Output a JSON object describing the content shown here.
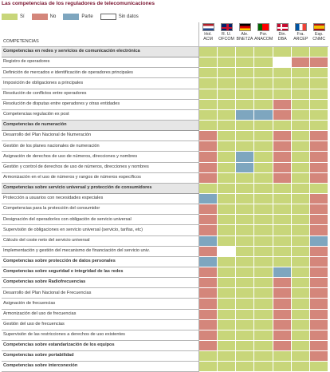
{
  "title": "Las competencias de los reguladores de telecomunicaciones",
  "legend": [
    {
      "label": "Sí",
      "key": "si",
      "color": "#c8d67a"
    },
    {
      "label": "No",
      "key": "no",
      "color": "#d4867b"
    },
    {
      "label": "Parte",
      "key": "pa",
      "color": "#7ea6bf"
    },
    {
      "label": "Sin datos",
      "key": "sd",
      "color": "#ffffff"
    }
  ],
  "header_label": "COMPETENCIAS",
  "countries": [
    {
      "country": "Hol.",
      "regulator": "ACM",
      "flag": "nl-flag-icon"
    },
    {
      "country": "R. U.",
      "regulator": "OFCOM",
      "flag": "uk-flag-icon"
    },
    {
      "country": "Ale.",
      "regulator": "BNETZA",
      "flag": "de-flag-icon"
    },
    {
      "country": "Por.",
      "regulator": "ANACOM",
      "flag": "pt-flag-icon"
    },
    {
      "country": "Din.",
      "regulator": "DBA",
      "flag": "dk-flag-icon"
    },
    {
      "country": "Fra.",
      "regulator": "ARCEP",
      "flag": "fr-flag-icon"
    },
    {
      "country": "Esp.",
      "regulator": "CNMC",
      "flag": "es-flag-icon"
    }
  ],
  "rows": [
    {
      "label": "Competencias en redes y servicios de comunicación electrónica",
      "type": "section",
      "cells": [
        "si",
        "si",
        "si",
        "si",
        "si",
        "si",
        "si"
      ]
    },
    {
      "label": "Registro de operadores",
      "cells": [
        "si",
        "si",
        "si",
        "si",
        "sd",
        "no",
        "no"
      ]
    },
    {
      "label": "Definición de mercados e identificación de operadores principales",
      "cells": [
        "si",
        "si",
        "si",
        "si",
        "si",
        "si",
        "si"
      ]
    },
    {
      "label": "Imposición de obligaciones a principales",
      "cells": [
        "si",
        "si",
        "si",
        "si",
        "si",
        "si",
        "si"
      ]
    },
    {
      "label": "Resolución de conflictos entre operadores",
      "cells": [
        "si",
        "si",
        "si",
        "si",
        "si",
        "si",
        "si"
      ]
    },
    {
      "label": "Resolución de disputas entre operadores y otras entidades",
      "cells": [
        "si",
        "si",
        "si",
        "si",
        "no",
        "si",
        "si"
      ]
    },
    {
      "label": "Competencias regulación ex post",
      "cells": [
        "si",
        "si",
        "pa",
        "pa",
        "no",
        "si",
        "si"
      ]
    },
    {
      "label": "Competencias de numeración",
      "type": "section",
      "cells": [
        "si",
        "si",
        "si",
        "si",
        "si",
        "si",
        "si"
      ]
    },
    {
      "label": "Desarrollo del Plan Nacional de Numeración",
      "cells": [
        "no",
        "si",
        "si",
        "si",
        "no",
        "si",
        "no"
      ]
    },
    {
      "label": "Gestión de los planes nacionales de numeración",
      "cells": [
        "no",
        "si",
        "si",
        "si",
        "no",
        "si",
        "no"
      ]
    },
    {
      "label": "Asignación de derechos de uso de números, direcciones y nombres",
      "cells": [
        "no",
        "si",
        "pa",
        "si",
        "no",
        "si",
        "no"
      ]
    },
    {
      "label": "Gestión y control de derechos de uso de números, direcciones y nombres",
      "cells": [
        "no",
        "si",
        "pa",
        "si",
        "no",
        "si",
        "no"
      ]
    },
    {
      "label": "Armonización en el uso de números y rangos de números específicos",
      "cells": [
        "no",
        "si",
        "si",
        "si",
        "no",
        "si",
        "no"
      ]
    },
    {
      "label": "Competencias sobre servicio universal y protección de consumidores",
      "type": "section",
      "cells": [
        "si",
        "si",
        "si",
        "si",
        "si",
        "si",
        "si"
      ]
    },
    {
      "label": "Protección a usuarios con necesidades especiales",
      "cells": [
        "pa",
        "si",
        "si",
        "si",
        "si",
        "si",
        "no"
      ]
    },
    {
      "label": "Competencias para la protección del consumidor",
      "cells": [
        "no",
        "si",
        "si",
        "si",
        "si",
        "si",
        "no"
      ]
    },
    {
      "label": "Designación del operador/es con obligación de servicio universal",
      "cells": [
        "no",
        "si",
        "si",
        "si",
        "si",
        "si",
        "no"
      ]
    },
    {
      "label": "Supervisión de obligaciones en servicio universal (servicio, tarifas, etc)",
      "cells": [
        "no",
        "si",
        "si",
        "si",
        "si",
        "si",
        "no"
      ]
    },
    {
      "label": "Cálculo del coste neto del servicio universal",
      "cells": [
        "pa",
        "si",
        "si",
        "si",
        "si",
        "si",
        "pa"
      ]
    },
    {
      "label": "Implementación y gestión del mecanismo de financiación del servicio univ.",
      "cells": [
        "no",
        "sd",
        "si",
        "si",
        "si",
        "si",
        "no"
      ]
    },
    {
      "label": "Competencias sobre protección de datos personales",
      "type": "bold",
      "cells": [
        "pa",
        "si",
        "si",
        "si",
        "si",
        "si",
        "no"
      ]
    },
    {
      "label": "Competencias sobre seguridad e integridad de las redes",
      "type": "bold",
      "cells": [
        "no",
        "si",
        "si",
        "si",
        "pa",
        "si",
        "no"
      ]
    },
    {
      "label": "Competencias sobre Radiofrecuencias",
      "type": "bold",
      "cells": [
        "no",
        "si",
        "si",
        "si",
        "no",
        "si",
        "no"
      ]
    },
    {
      "label": "Desarrollo del Plan Nacional de Frecuencias",
      "cells": [
        "no",
        "si",
        "si",
        "si",
        "no",
        "si",
        "no"
      ]
    },
    {
      "label": "Asignación de frecuencias",
      "cells": [
        "no",
        "si",
        "si",
        "si",
        "no",
        "si",
        "no"
      ]
    },
    {
      "label": "Armonización del uso de frecuencias",
      "cells": [
        "no",
        "si",
        "si",
        "si",
        "no",
        "si",
        "no"
      ]
    },
    {
      "label": "Gestión del uso de frecuencias",
      "cells": [
        "no",
        "si",
        "si",
        "si",
        "no",
        "si",
        "no"
      ]
    },
    {
      "label": "Supervisión de las restricciones a derechos de uso existentes",
      "cells": [
        "no",
        "si",
        "si",
        "si",
        "no",
        "si",
        "no"
      ]
    },
    {
      "label": "Competencias sobre estandarización de los equipos",
      "type": "bold",
      "cells": [
        "no",
        "si",
        "si",
        "si",
        "no",
        "si",
        "no"
      ]
    },
    {
      "label": "Competencias sobre portabilidad",
      "type": "bold",
      "cells": [
        "si",
        "si",
        "si",
        "si",
        "si",
        "si",
        "no"
      ]
    },
    {
      "label": "Competencias sobre interconexión",
      "type": "bold",
      "cells": [
        "si",
        "si",
        "si",
        "si",
        "si",
        "si",
        "si"
      ]
    }
  ]
}
